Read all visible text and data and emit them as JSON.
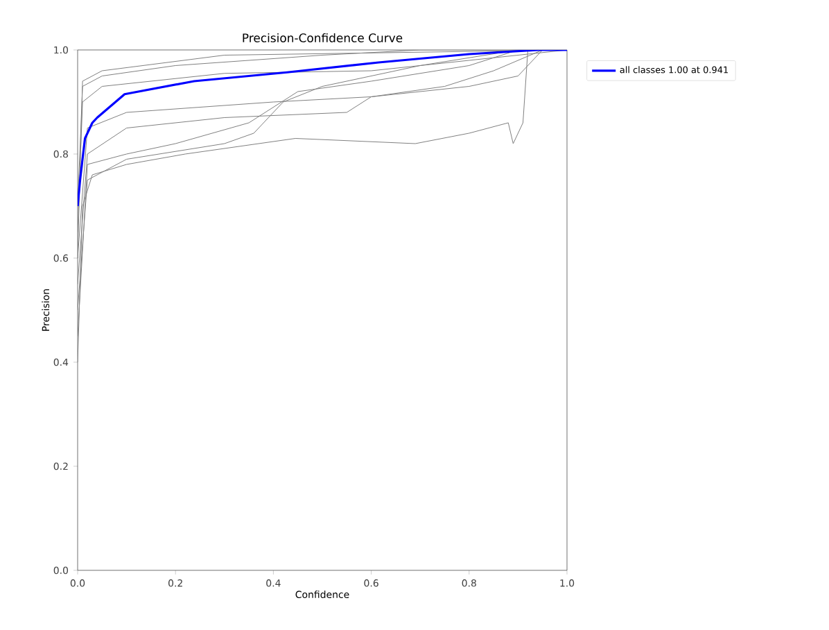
{
  "chart_data": {
    "type": "line",
    "title": "Precision-Confidence Curve",
    "xlabel": "Confidence",
    "ylabel": "Precision",
    "xlim": [
      0,
      1
    ],
    "ylim": [
      0,
      1
    ],
    "xticks": [
      {
        "value": 0,
        "label": "0.0"
      },
      0.2,
      0.4,
      0.6,
      0.8,
      {
        "value": 1,
        "label": "1.0"
      }
    ],
    "yticks": [
      {
        "value": 0,
        "label": "0.0"
      },
      0.2,
      0.4,
      0.6,
      0.8,
      {
        "value": 1,
        "label": "1.0"
      }
    ],
    "grid": false,
    "legend": "top right",
    "series": [
      {
        "color": "#808080",
        "x": [
          0,
          0.01,
          0.05,
          0.3,
          1.0
        ],
        "values": [
          0.6,
          0.94,
          0.96,
          0.99,
          1.0
        ]
      },
      {
        "color": "#808080",
        "x": [
          0,
          0.01,
          0.03,
          0.1,
          0.22,
          0.445,
          0.69,
          0.8,
          0.88,
          0.89,
          0.91,
          0.92,
          1.0
        ],
        "values": [
          0.4,
          0.7,
          0.76,
          0.78,
          0.8,
          0.83,
          0.82,
          0.84,
          0.86,
          0.82,
          0.86,
          1.0,
          1.0
        ]
      },
      {
        "color": "#808080",
        "x": [
          0,
          0.02,
          0.1,
          0.3,
          0.36,
          0.42,
          0.5,
          0.7,
          0.9,
          1.0
        ],
        "values": [
          0.5,
          0.75,
          0.79,
          0.82,
          0.84,
          0.9,
          0.93,
          0.97,
          1.0,
          1.0
        ]
      },
      {
        "color": "#808080",
        "x": [
          0,
          0.02,
          0.1,
          0.3,
          0.55,
          0.6,
          0.8,
          0.9,
          0.95,
          1.0
        ],
        "values": [
          0.55,
          0.8,
          0.85,
          0.87,
          0.88,
          0.91,
          0.93,
          0.95,
          1.0,
          1.0
        ]
      },
      {
        "color": "#808080",
        "x": [
          0,
          0.02,
          0.1,
          0.4,
          0.6,
          0.75,
          0.85,
          0.95,
          1.0
        ],
        "values": [
          0.6,
          0.85,
          0.88,
          0.9,
          0.91,
          0.93,
          0.96,
          1.0,
          1.0
        ]
      },
      {
        "color": "#808080",
        "x": [
          0,
          0.01,
          0.05,
          0.3,
          0.6,
          0.8,
          1.0
        ],
        "values": [
          0.65,
          0.9,
          0.93,
          0.955,
          0.96,
          0.98,
          1.0
        ]
      },
      {
        "color": "#808080",
        "x": [
          0,
          0.01,
          0.05,
          0.2,
          0.5,
          0.7,
          1.0
        ],
        "values": [
          0.7,
          0.93,
          0.95,
          0.97,
          0.99,
          1.0,
          1.0
        ]
      },
      {
        "color": "#808080",
        "x": [
          0,
          0.02,
          0.1,
          0.2,
          0.35,
          0.45,
          0.6,
          0.8,
          0.9,
          1.0
        ],
        "values": [
          0.45,
          0.78,
          0.8,
          0.82,
          0.86,
          0.92,
          0.94,
          0.97,
          1.0,
          1.0
        ]
      },
      {
        "name": "all classes 1.00 at 0.941",
        "color": "#0000ff",
        "x": [
          0,
          0.005,
          0.015,
          0.03,
          0.04,
          0.096,
          0.238,
          0.428,
          0.615,
          0.8,
          0.941,
          1.0
        ],
        "values": [
          0.7,
          0.75,
          0.83,
          0.86,
          0.87,
          0.915,
          0.94,
          0.957,
          0.976,
          0.992,
          1.0,
          1.0
        ]
      }
    ]
  }
}
